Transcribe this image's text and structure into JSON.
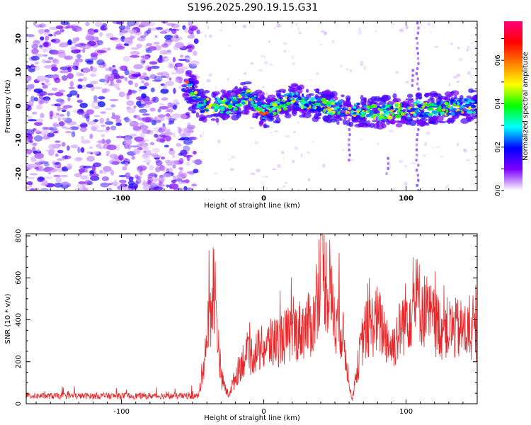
{
  "title": "S196.2025.290.19.15.G31",
  "chart_data": [
    {
      "type": "heatmap",
      "title": "S196.2025.290.19.15.G31",
      "xlabel": "Height of straight line (km)",
      "ylabel": "Frequency (Hz)",
      "xlim": [
        -167,
        150
      ],
      "ylim": [
        -25,
        25
      ],
      "xticks": [
        -100,
        0,
        100
      ],
      "yticks": [
        -20,
        -10,
        0,
        10,
        20
      ],
      "colorbar": {
        "label": "Normalized spectral amplitude",
        "range": [
          0,
          0.78
        ],
        "ticks": [
          "0.0",
          "0.2",
          "0.4",
          "0.6"
        ],
        "colors": [
          "#ffffff",
          "#7f00ff",
          "#0000ff",
          "#00ffff",
          "#00ff00",
          "#ffff00",
          "#ff8000",
          "#ff0000",
          "#ff007f"
        ]
      },
      "description_ridge": [
        {
          "x": -55,
          "y": 7
        },
        {
          "x": -50,
          "y": 5
        },
        {
          "x": -45,
          "y": 0
        },
        {
          "x": -35,
          "y": 0
        },
        {
          "x": -25,
          "y": 0
        },
        {
          "x": -10,
          "y": 3
        },
        {
          "x": 0,
          "y": -2
        },
        {
          "x": 20,
          "y": 2
        },
        {
          "x": 40,
          "y": 0
        },
        {
          "x": 60,
          "y": -1
        },
        {
          "x": 80,
          "y": -2
        },
        {
          "x": 100,
          "y": -1
        },
        {
          "x": 120,
          "y": -1
        },
        {
          "x": 140,
          "y": 0
        },
        {
          "x": 150,
          "y": 0
        }
      ]
    },
    {
      "type": "line",
      "xlabel": "Height of straight line (km)",
      "ylabel": "SNR (10 * v/v)",
      "xlim": [
        -167,
        150
      ],
      "ylim": [
        0,
        810
      ],
      "xticks": [
        -100,
        0,
        100
      ],
      "yticks": [
        0,
        200,
        400,
        600,
        800
      ],
      "color": "#e8282a",
      "envelope": [
        {
          "x": -167,
          "y": 30
        },
        {
          "x": -120,
          "y": 30
        },
        {
          "x": -80,
          "y": 30
        },
        {
          "x": -46,
          "y": 30
        },
        {
          "x": -42,
          "y": 250
        },
        {
          "x": -35,
          "y": 700
        },
        {
          "x": -30,
          "y": 150
        },
        {
          "x": -25,
          "y": 50
        },
        {
          "x": -15,
          "y": 250
        },
        {
          "x": 0,
          "y": 320
        },
        {
          "x": 20,
          "y": 400
        },
        {
          "x": 35,
          "y": 460
        },
        {
          "x": 40,
          "y": 810
        },
        {
          "x": 50,
          "y": 500
        },
        {
          "x": 55,
          "y": 420
        },
        {
          "x": 62,
          "y": 20
        },
        {
          "x": 70,
          "y": 400
        },
        {
          "x": 80,
          "y": 480
        },
        {
          "x": 90,
          "y": 320
        },
        {
          "x": 100,
          "y": 500
        },
        {
          "x": 108,
          "y": 600
        },
        {
          "x": 115,
          "y": 500
        },
        {
          "x": 125,
          "y": 430
        },
        {
          "x": 140,
          "y": 420
        },
        {
          "x": 150,
          "y": 380
        }
      ]
    }
  ]
}
